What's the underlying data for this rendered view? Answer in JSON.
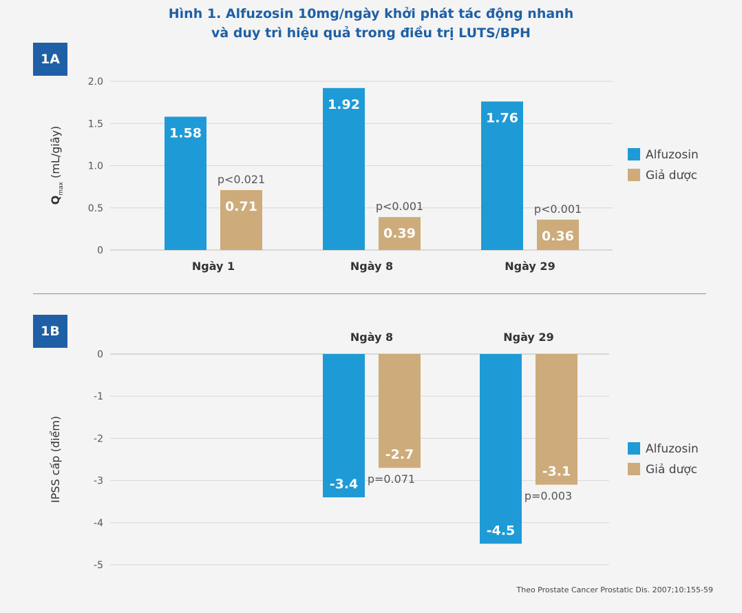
{
  "title": {
    "line1": "Hình 1. Alfuzosin 10mg/ngày khởi phát tác động nhanh",
    "line2": "và duy trì hiệu quả trong điều trị LUTS/BPH"
  },
  "source": "Theo Prostate Cancer Prostatic Dis. 2007;10:155-59",
  "colors": {
    "alfuzosin": "#1e9ad6",
    "placebo": "#cdab7a",
    "accent": "#1e5fa5"
  },
  "chart_data": [
    {
      "panel": "1A",
      "type": "bar",
      "ylabel_main": "Q",
      "ylabel_sub": "max",
      "ylabel_rest": " (mL/giây)",
      "ylim": [
        0,
        2
      ],
      "yticks": [
        "0",
        "0.5",
        "1.0",
        "1.5",
        "2.0"
      ],
      "grid": true,
      "categories": [
        "Ngày 1",
        "Ngày 8",
        "Ngày 29"
      ],
      "series": [
        {
          "name": "Alfuzosin",
          "color": "#1e9ad6",
          "values": [
            1.58,
            1.92,
            1.76
          ],
          "labels": [
            "1.58",
            "1.92",
            "1.76"
          ]
        },
        {
          "name": "Giả dược",
          "color": "#cdab7a",
          "values": [
            0.71,
            0.39,
            0.36
          ],
          "labels": [
            "0.71",
            "0.39",
            "0.36"
          ]
        }
      ],
      "annotations": [
        "p<0.021",
        "p<0.001",
        "p<0.001"
      ],
      "legend_position": "right"
    },
    {
      "panel": "1B",
      "type": "bar",
      "ylabel": "IPSS cấp (điểm)",
      "ylim": [
        -5,
        0
      ],
      "yticks": [
        "0",
        "-1",
        "-2",
        "-3",
        "-4",
        "-5"
      ],
      "grid": true,
      "categories": [
        "Ngày 8",
        "Ngày 29"
      ],
      "series": [
        {
          "name": "Alfuzosin",
          "color": "#1e9ad6",
          "values": [
            -3.4,
            -4.5
          ],
          "labels": [
            "-3.4",
            "-4.5"
          ]
        },
        {
          "name": "Giả dược",
          "color": "#cdab7a",
          "values": [
            -2.7,
            -3.1
          ],
          "labels": [
            "-2.7",
            "-3.1"
          ]
        }
      ],
      "annotations": [
        "p=0.071",
        "p=0.003"
      ],
      "legend_position": "right"
    }
  ]
}
